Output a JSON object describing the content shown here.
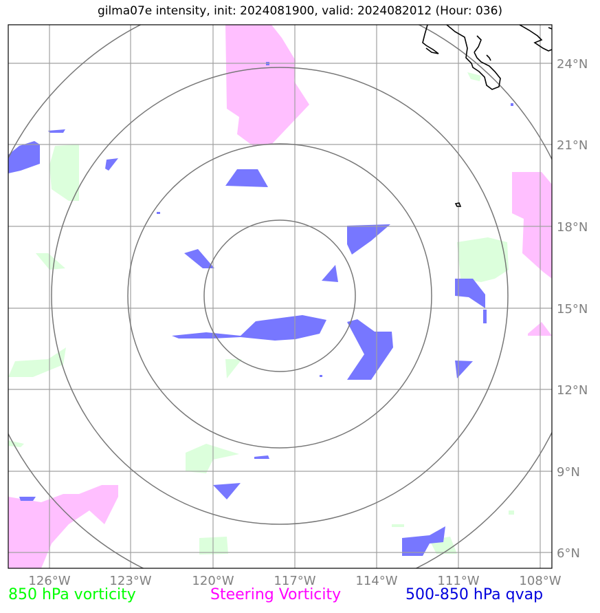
{
  "title": "gilma07e intensity, init: 2024081900, valid: 2024082012 (Hour: 036)",
  "lon_labels": [
    "126°W",
    "123°W",
    "120°W",
    "117°W",
    "114°W",
    "111°W",
    "108°W"
  ],
  "lat_labels": [
    "24°N",
    "21°N",
    "18°N",
    "15°N",
    "12°N",
    "9°N",
    "6°N"
  ],
  "legend": {
    "vort850": {
      "label": "850 hPa vorticity",
      "color": "#00ff00"
    },
    "steering": {
      "label": "Steering Vorticity",
      "color": "#ff00ff"
    },
    "qvap": {
      "label": "500-850 hPa qvap",
      "color": "#0000dd"
    }
  },
  "field_colors": {
    "vort850_fill": "#dcffdc",
    "steering_fill": "#ffbfff",
    "qvap_fill": "#7777ff"
  },
  "range_rings_count": 4
}
